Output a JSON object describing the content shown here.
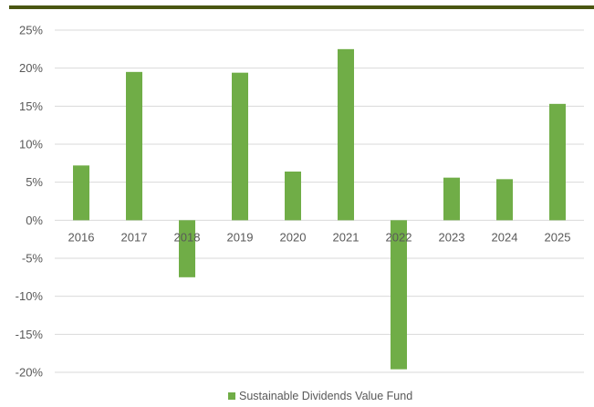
{
  "colors": {
    "bar": "#70ad47",
    "top_rule": "#4a5611",
    "gridline": "#d9d9d9",
    "text": "#595959"
  },
  "chart_data": {
    "type": "bar",
    "categories": [
      "2016",
      "2017",
      "2018",
      "2019",
      "2020",
      "2021",
      "2022",
      "2023",
      "2024",
      "2025"
    ],
    "series": [
      {
        "name": "Sustainable Dividends Value Fund",
        "values": [
          7.2,
          19.5,
          -7.5,
          19.4,
          6.4,
          22.5,
          -19.6,
          5.6,
          5.4,
          15.3
        ]
      }
    ],
    "title": "",
    "xlabel": "",
    "ylabel": "",
    "ylim": [
      -20,
      25
    ],
    "yticks": [
      25,
      20,
      15,
      10,
      5,
      0,
      -5,
      -10,
      -15,
      -20
    ],
    "ytick_format": "percent",
    "grid": true,
    "legend": "bottom-center"
  }
}
